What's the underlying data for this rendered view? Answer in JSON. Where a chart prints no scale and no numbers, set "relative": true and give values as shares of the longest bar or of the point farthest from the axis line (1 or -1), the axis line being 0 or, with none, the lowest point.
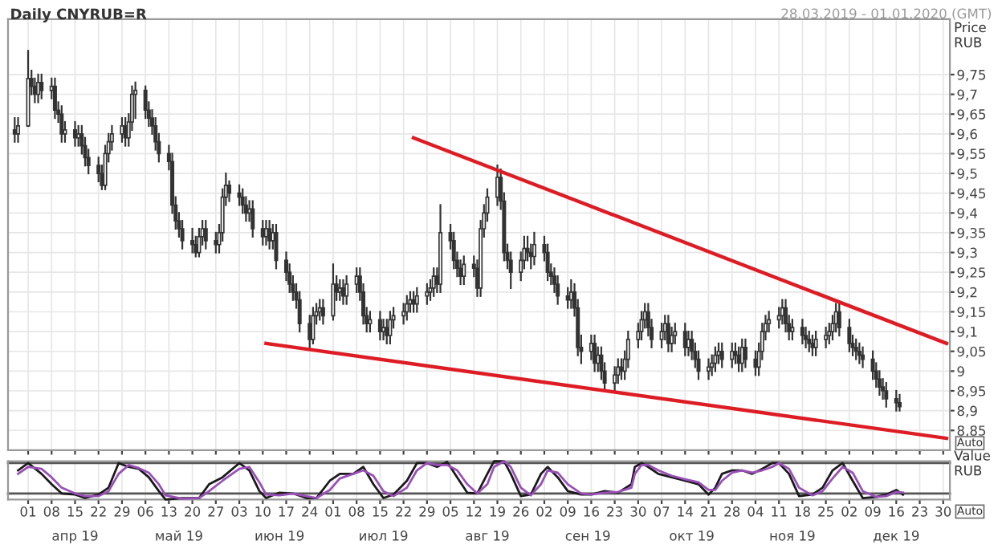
{
  "chart_data": [
    {
      "type": "candlestick",
      "title": "Daily CNYRUB=R",
      "subtitle": "28.03.2019 - 01.01.2020 (GMT)",
      "ylabel": "Price\nRUB",
      "color": "#333333",
      "annotations": [
        "Auto"
      ],
      "x": [
        "2019-03-28",
        "2019-03-29",
        "2019-04-01",
        "2019-04-02",
        "2019-04-03",
        "2019-04-04",
        "2019-04-05",
        "2019-04-08",
        "2019-04-09",
        "2019-04-10",
        "2019-04-11",
        "2019-04-12",
        "2019-04-15",
        "2019-04-16",
        "2019-04-17",
        "2019-04-18",
        "2019-04-19",
        "2019-04-22",
        "2019-04-23",
        "2019-04-24",
        "2019-04-25",
        "2019-04-26",
        "2019-04-29",
        "2019-04-30",
        "2019-05-01",
        "2019-05-02",
        "2019-05-03",
        "2019-05-06",
        "2019-05-07",
        "2019-05-08",
        "2019-05-09",
        "2019-05-10",
        "2019-05-13",
        "2019-05-14",
        "2019-05-15",
        "2019-05-16",
        "2019-05-17",
        "2019-05-20",
        "2019-05-21",
        "2019-05-22",
        "2019-05-23",
        "2019-05-24",
        "2019-05-27",
        "2019-05-28",
        "2019-05-29",
        "2019-05-30",
        "2019-05-31",
        "2019-06-03",
        "2019-06-04",
        "2019-06-05",
        "2019-06-06",
        "2019-06-07",
        "2019-06-10",
        "2019-06-11",
        "2019-06-12",
        "2019-06-13",
        "2019-06-14",
        "2019-06-17",
        "2019-06-18",
        "2019-06-19",
        "2019-06-20",
        "2019-06-21",
        "2019-06-24",
        "2019-06-25",
        "2019-06-26",
        "2019-06-27",
        "2019-06-28",
        "2019-07-01",
        "2019-07-02",
        "2019-07-03",
        "2019-07-04",
        "2019-07-05",
        "2019-07-08",
        "2019-07-09",
        "2019-07-10",
        "2019-07-11",
        "2019-07-12",
        "2019-07-15",
        "2019-07-16",
        "2019-07-17",
        "2019-07-18",
        "2019-07-19",
        "2019-07-22",
        "2019-07-23",
        "2019-07-24",
        "2019-07-25",
        "2019-07-26",
        "2019-07-29",
        "2019-07-30",
        "2019-07-31",
        "2019-08-01",
        "2019-08-02",
        "2019-08-05",
        "2019-08-06",
        "2019-08-07",
        "2019-08-08",
        "2019-08-09",
        "2019-08-12",
        "2019-08-13",
        "2019-08-14",
        "2019-08-15",
        "2019-08-16",
        "2019-08-19",
        "2019-08-20",
        "2019-08-21",
        "2019-08-22",
        "2019-08-23",
        "2019-08-26",
        "2019-08-27",
        "2019-08-28",
        "2019-08-29",
        "2019-08-30",
        "2019-09-02",
        "2019-09-03",
        "2019-09-04",
        "2019-09-05",
        "2019-09-06",
        "2019-09-09",
        "2019-09-10",
        "2019-09-11",
        "2019-09-12",
        "2019-09-13",
        "2019-09-16",
        "2019-09-17",
        "2019-09-18",
        "2019-09-19",
        "2019-09-20",
        "2019-09-23",
        "2019-09-24",
        "2019-09-25",
        "2019-09-26",
        "2019-09-27",
        "2019-09-30",
        "2019-10-01",
        "2019-10-02",
        "2019-10-03",
        "2019-10-04",
        "2019-10-07",
        "2019-10-08",
        "2019-10-09",
        "2019-10-10",
        "2019-10-11",
        "2019-10-14",
        "2019-10-15",
        "2019-10-16",
        "2019-10-17",
        "2019-10-18",
        "2019-10-21",
        "2019-10-22",
        "2019-10-23",
        "2019-10-24",
        "2019-10-25",
        "2019-10-28",
        "2019-10-29",
        "2019-10-30",
        "2019-10-31",
        "2019-11-01",
        "2019-11-04",
        "2019-11-05",
        "2019-11-06",
        "2019-11-07",
        "2019-11-08",
        "2019-11-11",
        "2019-11-12",
        "2019-11-13",
        "2019-11-14",
        "2019-11-15",
        "2019-11-18",
        "2019-11-19",
        "2019-11-20",
        "2019-11-21",
        "2019-11-22",
        "2019-11-25",
        "2019-11-26",
        "2019-11-27",
        "2019-11-28",
        "2019-11-29",
        "2019-12-02",
        "2019-12-03",
        "2019-12-04",
        "2019-12-05",
        "2019-12-06",
        "2019-12-09",
        "2019-12-10",
        "2019-12-11",
        "2019-12-12",
        "2019-12-13",
        "2019-12-16",
        "2019-12-17"
      ],
      "ohlc": [
        [
          9.61,
          9.64,
          9.58,
          9.6
        ],
        [
          9.6,
          9.64,
          9.58,
          9.62
        ],
        [
          9.62,
          9.81,
          9.62,
          9.74
        ],
        [
          9.74,
          9.76,
          9.7,
          9.72
        ],
        [
          9.72,
          9.74,
          9.68,
          9.7
        ],
        [
          9.7,
          9.75,
          9.68,
          9.73
        ],
        [
          9.73,
          9.75,
          9.69,
          9.71
        ],
        [
          9.71,
          9.74,
          9.69,
          9.72
        ],
        [
          9.72,
          9.74,
          9.64,
          9.66
        ],
        [
          9.66,
          9.68,
          9.63,
          9.65
        ],
        [
          9.65,
          9.67,
          9.58,
          9.6
        ],
        [
          9.6,
          9.63,
          9.58,
          9.61
        ],
        [
          9.61,
          9.63,
          9.57,
          9.59
        ],
        [
          9.59,
          9.62,
          9.57,
          9.6
        ],
        [
          9.6,
          9.62,
          9.55,
          9.57
        ],
        [
          9.57,
          9.59,
          9.52,
          9.54
        ],
        [
          9.54,
          9.56,
          9.5,
          9.52
        ],
        [
          9.52,
          9.54,
          9.48,
          9.5
        ],
        [
          9.5,
          9.52,
          9.46,
          9.47
        ],
        [
          9.47,
          9.57,
          9.46,
          9.55
        ],
        [
          9.55,
          9.6,
          9.53,
          9.58
        ],
        [
          9.58,
          9.62,
          9.56,
          9.6
        ],
        [
          9.6,
          9.64,
          9.58,
          9.62
        ],
        [
          9.62,
          9.64,
          9.57,
          9.59
        ],
        [
          9.59,
          9.65,
          9.57,
          9.63
        ],
        [
          9.63,
          9.72,
          9.61,
          9.7
        ],
        [
          9.7,
          9.73,
          9.64,
          9.71
        ],
        [
          9.71,
          9.72,
          9.64,
          9.66
        ],
        [
          9.66,
          9.68,
          9.62,
          9.64
        ],
        [
          9.64,
          9.66,
          9.6,
          9.62
        ],
        [
          9.62,
          9.64,
          9.56,
          9.58
        ],
        [
          9.58,
          9.6,
          9.53,
          9.55
        ],
        [
          9.55,
          9.57,
          9.51,
          9.53
        ],
        [
          9.53,
          9.55,
          9.4,
          9.42
        ],
        [
          9.42,
          9.44,
          9.36,
          9.38
        ],
        [
          9.38,
          9.4,
          9.34,
          9.36
        ],
        [
          9.36,
          9.38,
          9.31,
          9.33
        ],
        [
          9.33,
          9.36,
          9.3,
          9.32
        ],
        [
          9.32,
          9.34,
          9.29,
          9.3
        ],
        [
          9.3,
          9.36,
          9.29,
          9.34
        ],
        [
          9.34,
          9.38,
          9.32,
          9.36
        ],
        [
          9.36,
          9.38,
          9.31,
          9.33
        ],
        [
          9.33,
          9.35,
          9.3,
          9.32
        ],
        [
          9.32,
          9.37,
          9.3,
          9.35
        ],
        [
          9.35,
          9.46,
          9.33,
          9.44
        ],
        [
          9.44,
          9.5,
          9.42,
          9.47
        ],
        [
          9.47,
          9.48,
          9.43,
          9.45
        ],
        [
          9.45,
          9.47,
          9.42,
          9.44
        ],
        [
          9.44,
          9.46,
          9.4,
          9.42
        ],
        [
          9.42,
          9.44,
          9.38,
          9.4
        ],
        [
          9.4,
          9.43,
          9.38,
          9.41
        ],
        [
          9.41,
          9.43,
          9.34,
          9.36
        ],
        [
          9.36,
          9.38,
          9.32,
          9.34
        ],
        [
          9.34,
          9.38,
          9.32,
          9.36
        ],
        [
          9.36,
          9.38,
          9.31,
          9.33
        ],
        [
          9.33,
          9.37,
          9.31,
          9.35
        ],
        [
          9.35,
          9.37,
          9.26,
          9.28
        ],
        [
          9.28,
          9.3,
          9.23,
          9.25
        ],
        [
          9.25,
          9.27,
          9.2,
          9.22
        ],
        [
          9.22,
          9.24,
          9.18,
          9.2
        ],
        [
          9.2,
          9.22,
          9.16,
          9.18
        ],
        [
          9.18,
          9.2,
          9.1,
          9.12
        ],
        [
          9.12,
          9.14,
          9.06,
          9.08
        ],
        [
          9.08,
          9.16,
          9.07,
          9.14
        ],
        [
          9.14,
          9.17,
          9.12,
          9.15
        ],
        [
          9.15,
          9.18,
          9.13,
          9.16
        ],
        [
          9.16,
          9.18,
          9.12,
          9.14
        ],
        [
          9.14,
          9.27,
          9.13,
          9.22
        ],
        [
          9.22,
          9.24,
          9.18,
          9.2
        ],
        [
          9.2,
          9.23,
          9.18,
          9.21
        ],
        [
          9.21,
          9.23,
          9.17,
          9.19
        ],
        [
          9.19,
          9.24,
          9.17,
          9.22
        ],
        [
          9.22,
          9.26,
          9.2,
          9.24
        ],
        [
          9.24,
          9.26,
          9.18,
          9.2
        ],
        [
          9.2,
          9.22,
          9.12,
          9.14
        ],
        [
          9.14,
          9.16,
          9.1,
          9.12
        ],
        [
          9.12,
          9.15,
          9.1,
          9.13
        ],
        [
          9.13,
          9.15,
          9.08,
          9.1
        ],
        [
          9.1,
          9.13,
          9.08,
          9.11
        ],
        [
          9.11,
          9.13,
          9.07,
          9.09
        ],
        [
          9.09,
          9.15,
          9.07,
          9.13
        ],
        [
          9.13,
          9.16,
          9.11,
          9.14
        ],
        [
          9.14,
          9.17,
          9.12,
          9.15
        ],
        [
          9.15,
          9.19,
          9.13,
          9.17
        ],
        [
          9.17,
          9.2,
          9.15,
          9.18
        ],
        [
          9.18,
          9.2,
          9.15,
          9.17
        ],
        [
          9.17,
          9.21,
          9.15,
          9.19
        ],
        [
          9.19,
          9.22,
          9.17,
          9.2
        ],
        [
          9.2,
          9.23,
          9.18,
          9.21
        ],
        [
          9.21,
          9.26,
          9.19,
          9.24
        ],
        [
          9.24,
          9.26,
          9.2,
          9.22
        ],
        [
          9.22,
          9.42,
          9.2,
          9.35
        ],
        [
          9.35,
          9.37,
          9.31,
          9.33
        ],
        [
          9.33,
          9.35,
          9.26,
          9.28
        ],
        [
          9.28,
          9.3,
          9.24,
          9.26
        ],
        [
          9.26,
          9.28,
          9.22,
          9.24
        ],
        [
          9.24,
          9.29,
          9.22,
          9.27
        ],
        [
          9.27,
          9.29,
          9.24,
          9.26
        ],
        [
          9.26,
          9.28,
          9.19,
          9.21
        ],
        [
          9.21,
          9.38,
          9.19,
          9.36
        ],
        [
          9.36,
          9.42,
          9.34,
          9.4
        ],
        [
          9.4,
          9.46,
          9.38,
          9.44
        ],
        [
          9.44,
          9.52,
          9.42,
          9.49
        ],
        [
          9.49,
          9.51,
          9.41,
          9.43
        ],
        [
          9.43,
          9.45,
          9.28,
          9.3
        ],
        [
          9.3,
          9.32,
          9.26,
          9.28
        ],
        [
          9.28,
          9.3,
          9.21,
          9.25
        ],
        [
          9.25,
          9.3,
          9.23,
          9.28
        ],
        [
          9.28,
          9.34,
          9.26,
          9.31
        ],
        [
          9.31,
          9.34,
          9.28,
          9.3
        ],
        [
          9.3,
          9.32,
          9.26,
          9.29
        ],
        [
          9.29,
          9.35,
          9.27,
          9.32
        ],
        [
          9.32,
          9.34,
          9.28,
          9.3
        ],
        [
          9.3,
          9.32,
          9.23,
          9.25
        ],
        [
          9.25,
          9.27,
          9.22,
          9.24
        ],
        [
          9.24,
          9.26,
          9.2,
          9.22
        ],
        [
          9.22,
          9.24,
          9.17,
          9.19
        ],
        [
          9.19,
          9.21,
          9.16,
          9.18
        ],
        [
          9.18,
          9.23,
          9.16,
          9.2
        ],
        [
          9.2,
          9.22,
          9.14,
          9.16
        ],
        [
          9.16,
          9.18,
          9.04,
          9.06
        ],
        [
          9.06,
          9.09,
          9.02,
          9.05
        ],
        [
          9.05,
          9.09,
          9.03,
          9.07
        ],
        [
          9.07,
          9.09,
          9.0,
          9.02
        ],
        [
          9.02,
          9.06,
          9.0,
          9.04
        ],
        [
          9.04,
          9.06,
          8.98,
          9.0
        ],
        [
          9.0,
          9.02,
          8.95,
          8.97
        ],
        [
          8.97,
          9.01,
          8.95,
          8.99
        ],
        [
          8.99,
          9.03,
          8.97,
          9.01
        ],
        [
          9.01,
          9.03,
          8.98,
          9.0
        ],
        [
          9.0,
          9.05,
          8.98,
          9.03
        ],
        [
          9.03,
          9.1,
          9.01,
          9.08
        ],
        [
          9.08,
          9.12,
          9.06,
          9.1
        ],
        [
          9.1,
          9.15,
          9.08,
          9.13
        ],
        [
          9.13,
          9.17,
          9.11,
          9.15
        ],
        [
          9.15,
          9.17,
          9.09,
          9.11
        ],
        [
          9.11,
          9.13,
          9.06,
          9.08
        ],
        [
          9.08,
          9.12,
          9.06,
          9.1
        ],
        [
          9.1,
          9.14,
          9.08,
          9.12
        ],
        [
          9.12,
          9.14,
          9.05,
          9.07
        ],
        [
          9.07,
          9.11,
          9.05,
          9.09
        ],
        [
          9.09,
          9.12,
          9.07,
          9.1
        ],
        [
          9.1,
          9.12,
          9.04,
          9.06
        ],
        [
          9.06,
          9.1,
          9.04,
          9.08
        ],
        [
          9.08,
          9.1,
          9.03,
          9.05
        ],
        [
          9.05,
          9.07,
          9.01,
          9.03
        ],
        [
          9.03,
          9.05,
          8.98,
          9.0
        ],
        [
          9.0,
          9.03,
          8.98,
          9.01
        ],
        [
          9.01,
          9.04,
          8.99,
          9.02
        ],
        [
          9.02,
          9.06,
          9.0,
          9.04
        ],
        [
          9.04,
          9.07,
          9.02,
          9.05
        ],
        [
          9.05,
          9.07,
          9.01,
          9.03
        ],
        [
          9.03,
          9.07,
          9.01,
          9.05
        ],
        [
          9.05,
          9.07,
          9.02,
          9.04
        ],
        [
          9.04,
          9.06,
          9.0,
          9.02
        ],
        [
          9.02,
          9.08,
          9.0,
          9.06
        ],
        [
          9.06,
          9.08,
          9.01,
          9.03
        ],
        [
          9.03,
          9.05,
          8.99,
          9.01
        ],
        [
          9.01,
          9.07,
          8.99,
          9.05
        ],
        [
          9.05,
          9.12,
          9.03,
          9.1
        ],
        [
          9.1,
          9.14,
          9.08,
          9.12
        ],
        [
          9.12,
          9.15,
          9.1,
          9.13
        ],
        [
          9.13,
          9.16,
          9.11,
          9.14
        ],
        [
          9.14,
          9.18,
          9.12,
          9.16
        ],
        [
          9.16,
          9.18,
          9.1,
          9.12
        ],
        [
          9.12,
          9.14,
          9.08,
          9.1
        ],
        [
          9.1,
          9.13,
          9.08,
          9.11
        ],
        [
          9.11,
          9.13,
          9.07,
          9.09
        ],
        [
          9.09,
          9.11,
          9.06,
          9.08
        ],
        [
          9.08,
          9.1,
          9.05,
          9.07
        ],
        [
          9.07,
          9.09,
          9.04,
          9.06
        ],
        [
          9.06,
          9.1,
          9.04,
          9.08
        ],
        [
          9.08,
          9.11,
          9.06,
          9.09
        ],
        [
          9.09,
          9.12,
          9.07,
          9.1
        ],
        [
          9.1,
          9.14,
          9.08,
          9.12
        ],
        [
          9.12,
          9.17,
          9.1,
          9.15
        ],
        [
          9.15,
          9.17,
          9.09,
          9.11
        ],
        [
          9.11,
          9.13,
          9.05,
          9.07
        ],
        [
          9.07,
          9.09,
          9.04,
          9.06
        ],
        [
          9.06,
          9.08,
          9.03,
          9.05
        ],
        [
          9.05,
          9.07,
          9.02,
          9.04
        ],
        [
          9.04,
          9.06,
          9.01,
          9.03
        ],
        [
          9.03,
          9.05,
          8.98,
          9.0
        ],
        [
          9.0,
          9.02,
          8.96,
          8.98
        ],
        [
          8.98,
          9.0,
          8.94,
          8.96
        ],
        [
          8.96,
          8.98,
          8.93,
          8.95
        ],
        [
          8.95,
          8.97,
          8.91,
          8.93
        ],
        [
          8.93,
          8.95,
          8.9,
          8.92
        ],
        [
          8.92,
          8.94,
          8.9,
          8.91
        ]
      ],
      "series": [
        {
          "type": "line",
          "color": "#dd1c24",
          "x": [
            "2019-07-25",
            "2019-12-31"
          ],
          "values": [
            9.59,
            9.07
          ]
        },
        {
          "type": "line",
          "color": "#dd1c24",
          "x": [
            "2019-06-11",
            "2019-12-31"
          ],
          "values": [
            9.07,
            8.83
          ]
        }
      ],
      "xlim": [
        "2019-03-26",
        "2020-01-01"
      ],
      "ylim": [
        8.8,
        9.89
      ],
      "xticks": [
        {
          "value": "2019-04-01",
          "label": null
        },
        {
          "value": "2019-04-08",
          "label": null
        },
        {
          "value": "2019-04-15",
          "label": null
        },
        {
          "value": "2019-04-22",
          "label": null
        },
        {
          "value": "2019-04-29",
          "label": null
        },
        {
          "value": "2019-05-06",
          "label": null
        },
        {
          "value": "2019-05-13",
          "label": null
        },
        {
          "value": "2019-05-20",
          "label": null
        },
        {
          "value": "2019-05-27",
          "label": null
        },
        {
          "value": "2019-06-03",
          "label": null
        },
        {
          "value": "2019-06-10",
          "label": null
        },
        {
          "value": "2019-06-17",
          "label": null
        },
        {
          "value": "2019-06-24",
          "label": null
        },
        {
          "value": "2019-07-01",
          "label": null
        },
        {
          "value": "2019-07-08",
          "label": null
        },
        {
          "value": "2019-07-15",
          "label": null
        },
        {
          "value": "2019-07-22",
          "label": null
        },
        {
          "value": "2019-07-29",
          "label": null
        },
        {
          "value": "2019-08-05",
          "label": null
        },
        {
          "value": "2019-08-12",
          "label": null
        },
        {
          "value": "2019-08-19",
          "label": null
        },
        {
          "value": "2019-08-26",
          "label": null
        },
        {
          "value": "2019-09-02",
          "label": null
        },
        {
          "value": "2019-09-09",
          "label": null
        },
        {
          "value": "2019-09-16",
          "label": null
        },
        {
          "value": "2019-09-23",
          "label": null
        },
        {
          "value": "2019-09-30",
          "label": null
        },
        {
          "value": "2019-10-07",
          "label": null
        },
        {
          "value": "2019-10-14",
          "label": null
        },
        {
          "value": "2019-10-21",
          "label": null
        },
        {
          "value": "2019-10-28",
          "label": null
        },
        {
          "value": "2019-11-04",
          "label": null
        },
        {
          "value": "2019-11-11",
          "label": null
        },
        {
          "value": "2019-11-18",
          "label": null
        },
        {
          "value": "2019-11-25",
          "label": null
        },
        {
          "value": "2019-12-02",
          "label": null
        },
        {
          "value": "2019-12-09",
          "label": null
        },
        {
          "value": "2019-12-16",
          "label": null
        },
        {
          "value": "2019-12-23",
          "label": null
        },
        {
          "value": "2019-12-30",
          "label": null
        }
      ],
      "yticks": [
        {
          "value": 8.85,
          "label": "8,85"
        },
        {
          "value": 8.9,
          "label": "8,9"
        },
        {
          "value": 8.95,
          "label": "8,95"
        },
        9,
        {
          "value": 9.05,
          "label": "9,05"
        },
        {
          "value": 9.1,
          "label": "9,1"
        },
        {
          "value": 9.15,
          "label": "9,15"
        },
        {
          "value": 9.2,
          "label": "9,2"
        },
        {
          "value": 9.25,
          "label": "9,25"
        },
        {
          "value": 9.3,
          "label": "9,3"
        },
        {
          "value": 9.35,
          "label": "9,35"
        },
        {
          "value": 9.4,
          "label": "9,4"
        },
        {
          "value": 9.45,
          "label": "9,45"
        },
        {
          "value": 9.5,
          "label": "9,5"
        },
        {
          "value": 9.55,
          "label": "9,55"
        },
        {
          "value": 9.6,
          "label": "9,6"
        },
        {
          "value": 9.65,
          "label": "9,65"
        },
        {
          "value": 9.7,
          "label": "9,7"
        },
        {
          "value": 9.75,
          "label": "9,75"
        }
      ],
      "tick_labels": "y",
      "grid": true
    },
    {
      "type": "line",
      "relative": true,
      "ylabel": "Value\nRUB",
      "annotations": [
        "Auto"
      ],
      "series": [
        {
          "color": "#1a1a1a",
          "x": [
            "2019-03-29",
            "2019-04-01",
            "2019-04-05",
            "2019-04-08",
            "2019-04-11",
            "2019-04-15",
            "2019-04-18",
            "2019-04-22",
            "2019-04-25",
            "2019-04-28",
            "2019-05-01",
            "2019-05-04",
            "2019-05-07",
            "2019-05-10",
            "2019-05-12",
            "2019-05-17",
            "2019-05-22",
            "2019-05-25",
            "2019-05-29",
            "2019-06-03",
            "2019-06-06",
            "2019-06-09",
            "2019-06-11",
            "2019-06-15",
            "2019-06-19",
            "2019-06-23",
            "2019-06-26",
            "2019-06-30",
            "2019-07-03",
            "2019-07-07",
            "2019-07-10",
            "2019-07-13",
            "2019-07-16",
            "2019-07-19",
            "2019-07-23",
            "2019-07-26",
            "2019-07-29",
            "2019-08-01",
            "2019-08-04",
            "2019-08-07",
            "2019-08-10",
            "2019-08-13",
            "2019-08-16",
            "2019-08-18",
            "2019-08-21",
            "2019-08-23",
            "2019-08-26",
            "2019-08-29",
            "2019-09-01",
            "2019-09-03",
            "2019-09-06",
            "2019-09-09",
            "2019-09-13",
            "2019-09-16",
            "2019-09-20",
            "2019-09-24",
            "2019-09-28",
            "2019-09-29",
            "2019-10-01",
            "2019-10-03",
            "2019-10-06",
            "2019-10-10",
            "2019-10-14",
            "2019-10-18",
            "2019-10-21",
            "2019-10-23",
            "2019-10-25",
            "2019-10-28",
            "2019-10-31",
            "2019-11-03",
            "2019-11-06",
            "2019-11-09",
            "2019-11-11",
            "2019-11-14",
            "2019-11-17",
            "2019-11-21",
            "2019-11-24",
            "2019-11-27",
            "2019-11-30",
            "2019-12-03",
            "2019-12-06",
            "2019-12-10",
            "2019-12-13",
            "2019-12-16",
            "2019-12-18"
          ],
          "values": [
            0.76,
            0.95,
            0.67,
            0.4,
            0.16,
            0.13,
            0.04,
            0.13,
            0.31,
            0.95,
            0.85,
            0.8,
            0.58,
            0.22,
            0,
            0.04,
            0.04,
            0.4,
            0.58,
            0.95,
            0.76,
            0.22,
            0.04,
            0.18,
            0.16,
            0.04,
            0.04,
            0.49,
            0.67,
            0.67,
            0.85,
            0.4,
            0.04,
            0.13,
            0.49,
            0.95,
            0.95,
            0.85,
            0.98,
            0.58,
            0.18,
            0.16,
            0.67,
            1.0,
            1.0,
            0.67,
            0.09,
            0.13,
            0.67,
            0.85,
            0.58,
            0.22,
            0.13,
            0.13,
            0.22,
            0.18,
            0.4,
            0.85,
            0.95,
            0.85,
            0.67,
            0.58,
            0.49,
            0.4,
            0.13,
            0.31,
            0.67,
            0.76,
            0.76,
            0.67,
            0.8,
            0.95,
            0.95,
            0.67,
            0.09,
            0.13,
            0.31,
            0.76,
            0.95,
            0.49,
            0.04,
            0.07,
            0.13,
            0.25,
            0.13
          ]
        },
        {
          "color": "#9a4fb8",
          "x": [
            "2019-03-29",
            "2019-04-01",
            "2019-04-05",
            "2019-04-08",
            "2019-04-11",
            "2019-04-15",
            "2019-04-18",
            "2019-04-22",
            "2019-04-25",
            "2019-04-28",
            "2019-05-01",
            "2019-05-04",
            "2019-05-07",
            "2019-05-10",
            "2019-05-12",
            "2019-05-17",
            "2019-05-22",
            "2019-05-25",
            "2019-05-29",
            "2019-06-03",
            "2019-06-06",
            "2019-06-09",
            "2019-06-11",
            "2019-06-15",
            "2019-06-19",
            "2019-06-23",
            "2019-06-26",
            "2019-06-30",
            "2019-07-03",
            "2019-07-07",
            "2019-07-10",
            "2019-07-13",
            "2019-07-16",
            "2019-07-19",
            "2019-07-23",
            "2019-07-26",
            "2019-07-29",
            "2019-08-01",
            "2019-08-04",
            "2019-08-07",
            "2019-08-10",
            "2019-08-13",
            "2019-08-16",
            "2019-08-18",
            "2019-08-21",
            "2019-08-23",
            "2019-08-26",
            "2019-08-29",
            "2019-09-01",
            "2019-09-03",
            "2019-09-06",
            "2019-09-09",
            "2019-09-13",
            "2019-09-16",
            "2019-09-20",
            "2019-09-24",
            "2019-09-28",
            "2019-09-29",
            "2019-10-01",
            "2019-10-03",
            "2019-10-06",
            "2019-10-10",
            "2019-10-14",
            "2019-10-18",
            "2019-10-21",
            "2019-10-23",
            "2019-10-25",
            "2019-10-28",
            "2019-10-31",
            "2019-11-03",
            "2019-11-06",
            "2019-11-09",
            "2019-11-11",
            "2019-11-14",
            "2019-11-17",
            "2019-11-21",
            "2019-11-24",
            "2019-11-27",
            "2019-11-30",
            "2019-12-03",
            "2019-12-06",
            "2019-12-10",
            "2019-12-13",
            "2019-12-16",
            "2019-12-18"
          ],
          "values": [
            0.67,
            0.85,
            0.8,
            0.58,
            0.31,
            0.16,
            0.09,
            0.09,
            0.22,
            0.67,
            0.9,
            0.82,
            0.7,
            0.4,
            0.11,
            0.02,
            0.04,
            0.22,
            0.49,
            0.8,
            0.85,
            0.45,
            0.13,
            0.11,
            0.16,
            0.09,
            0.04,
            0.25,
            0.55,
            0.67,
            0.76,
            0.62,
            0.22,
            0.09,
            0.31,
            0.76,
            0.95,
            0.9,
            0.9,
            0.76,
            0.4,
            0.16,
            0.4,
            0.85,
            1.0,
            0.85,
            0.31,
            0.11,
            0.4,
            0.76,
            0.7,
            0.4,
            0.16,
            0.13,
            0.18,
            0.2,
            0.31,
            0.67,
            0.9,
            0.9,
            0.76,
            0.62,
            0.53,
            0.45,
            0.25,
            0.25,
            0.49,
            0.7,
            0.76,
            0.7,
            0.76,
            0.85,
            0.95,
            0.8,
            0.31,
            0.11,
            0.22,
            0.55,
            0.85,
            0.7,
            0.22,
            0.07,
            0.09,
            0.2,
            0.18
          ]
        }
      ],
      "ref_lines": [
        {
          "axis": "y",
          "value": 0.95,
          "color": "#555555"
        },
        {
          "axis": "y",
          "value": 0.16,
          "color": "#555555"
        }
      ],
      "xlim": [
        "2019-03-26",
        "2020-01-01"
      ],
      "xticks": [
        {
          "value": "2019-04-01",
          "label": "01"
        },
        {
          "value": "2019-04-08",
          "label": "08"
        },
        {
          "value": "2019-04-15",
          "label": "15"
        },
        {
          "value": "2019-04-22",
          "label": "22"
        },
        {
          "value": "2019-04-29",
          "label": "29"
        },
        {
          "value": "2019-05-06",
          "label": "06"
        },
        {
          "value": "2019-05-13",
          "label": "13"
        },
        {
          "value": "2019-05-20",
          "label": "20"
        },
        {
          "value": "2019-05-27",
          "label": "27"
        },
        {
          "value": "2019-06-03",
          "label": "03"
        },
        {
          "value": "2019-06-10",
          "label": "10"
        },
        {
          "value": "2019-06-17",
          "label": "17"
        },
        {
          "value": "2019-06-24",
          "label": "24"
        },
        {
          "value": "2019-07-01",
          "label": "01"
        },
        {
          "value": "2019-07-08",
          "label": "08"
        },
        {
          "value": "2019-07-15",
          "label": "15"
        },
        {
          "value": "2019-07-22",
          "label": "22"
        },
        {
          "value": "2019-07-29",
          "label": "29"
        },
        {
          "value": "2019-08-05",
          "label": "05"
        },
        {
          "value": "2019-08-12",
          "label": "12"
        },
        {
          "value": "2019-08-19",
          "label": "19"
        },
        {
          "value": "2019-08-26",
          "label": "26"
        },
        {
          "value": "2019-09-02",
          "label": "02"
        },
        {
          "value": "2019-09-09",
          "label": "09"
        },
        {
          "value": "2019-09-16",
          "label": "16"
        },
        {
          "value": "2019-09-23",
          "label": "23"
        },
        {
          "value": "2019-09-30",
          "label": "30"
        },
        {
          "value": "2019-10-07",
          "label": "07"
        },
        {
          "value": "2019-10-14",
          "label": "14"
        },
        {
          "value": "2019-10-21",
          "label": "21"
        },
        {
          "value": "2019-10-28",
          "label": "28"
        },
        {
          "value": "2019-11-04",
          "label": "04"
        },
        {
          "value": "2019-11-11",
          "label": "11"
        },
        {
          "value": "2019-11-18",
          "label": "18"
        },
        {
          "value": "2019-11-25",
          "label": "25"
        },
        {
          "value": "2019-12-02",
          "label": "02"
        },
        {
          "value": "2019-12-09",
          "label": "09"
        },
        {
          "value": "2019-12-16",
          "label": "16"
        },
        {
          "value": "2019-12-23",
          "label": "23"
        },
        {
          "value": "2019-12-30",
          "label": "30"
        }
      ],
      "x2lim": [
        "2019-03-26",
        "2020-01-01"
      ],
      "x2ticks": [
        {
          "value": "2019-04-15",
          "label": "апр 19"
        },
        {
          "value": "2019-05-16",
          "label": "май 19"
        },
        {
          "value": "2019-06-15",
          "label": "июн 19"
        },
        {
          "value": "2019-07-16",
          "label": "июл 19"
        },
        {
          "value": "2019-08-16",
          "label": "авг 19"
        },
        {
          "value": "2019-09-15",
          "label": "сен 19"
        },
        {
          "value": "2019-10-16",
          "label": "окт 19"
        },
        {
          "value": "2019-11-15",
          "label": "ноя 19"
        },
        {
          "value": "2019-12-16",
          "label": "дек 19"
        }
      ],
      "tick_labels": "x",
      "grid": true
    }
  ]
}
